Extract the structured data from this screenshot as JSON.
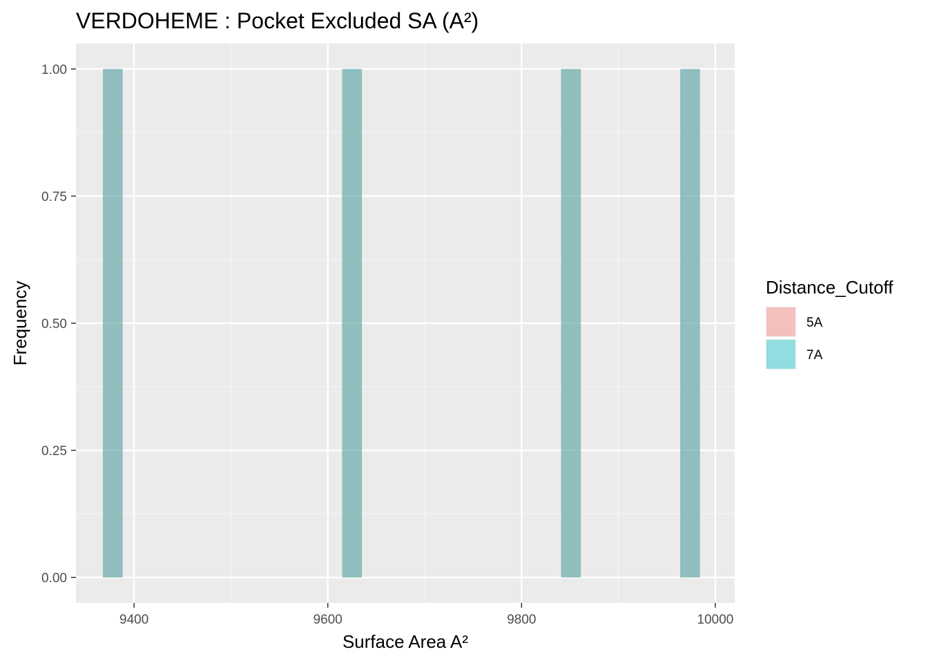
{
  "chart_data": {
    "type": "bar",
    "title": "VERDOHEME : Pocket Excluded SA (A²)",
    "xlabel": "Surface Area A²",
    "ylabel": "Frequency",
    "xlim": [
      9340,
      10020
    ],
    "ylim": [
      -0.05,
      1.05
    ],
    "x_ticks": [
      9400,
      9600,
      9800,
      10000
    ],
    "x_tick_labels": [
      "9400",
      "9600",
      "9800",
      "10000"
    ],
    "y_ticks": [
      0,
      0.25,
      0.5,
      0.75,
      1.0
    ],
    "y_tick_labels": [
      "0.00",
      "0.25",
      "0.50",
      "0.75",
      "1.00"
    ],
    "bin_width": 20.4,
    "grid": true,
    "legend": {
      "title": "Distance_Cutoff",
      "position": "right",
      "entries": [
        {
          "label": "5A",
          "color": "#F8766D"
        },
        {
          "label": "7A",
          "color": "#00BFC4"
        }
      ]
    },
    "series": [
      {
        "name": "5A",
        "color": "#F8766D",
        "bins": [
          {
            "x": 9378,
            "count": 1
          },
          {
            "x": 9625,
            "count": 1
          },
          {
            "x": 9851,
            "count": 1
          },
          {
            "x": 9974,
            "count": 1
          }
        ]
      },
      {
        "name": "7A",
        "color": "#00BFC4",
        "bins": [
          {
            "x": 9378,
            "count": 1
          },
          {
            "x": 9625,
            "count": 1
          },
          {
            "x": 9851,
            "count": 1
          },
          {
            "x": 9974,
            "count": 1
          }
        ]
      }
    ]
  },
  "colors": {
    "panel_background": "#EBEBEB",
    "grid_major": "#FFFFFF",
    "grid_minor": "#F5F5F5",
    "overlap_fill": "#93BCBC"
  }
}
